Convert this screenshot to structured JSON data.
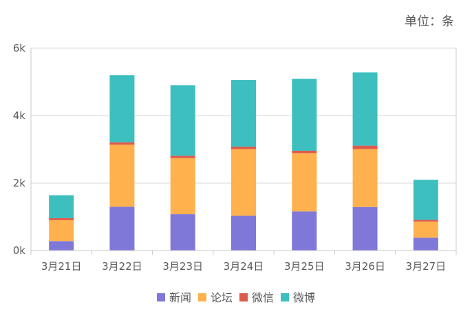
{
  "chart_data": {
    "type": "bar",
    "stacked": true,
    "unit_label": "单位：条",
    "categories": [
      "3月21日",
      "3月22日",
      "3月23日",
      "3月24日",
      "3月25日",
      "3月26日",
      "3月27日"
    ],
    "y_ticks": [
      {
        "value": 0,
        "label": "0k"
      },
      {
        "value": 2000,
        "label": "2k"
      },
      {
        "value": 4000,
        "label": "4k"
      },
      {
        "value": 6000,
        "label": "6k"
      }
    ],
    "ylim": [
      0,
      6000
    ],
    "grid": true,
    "legend_position": "bottom",
    "series": [
      {
        "name": "新闻",
        "color": "#7f78d8",
        "values": [
          280,
          1300,
          1080,
          1030,
          1160,
          1290,
          380
        ]
      },
      {
        "name": "论坛",
        "color": "#ffb14e",
        "values": [
          620,
          1840,
          1660,
          1980,
          1730,
          1720,
          480
        ]
      },
      {
        "name": "微信",
        "color": "#de5a4c",
        "values": [
          60,
          70,
          70,
          70,
          70,
          100,
          50
        ]
      },
      {
        "name": "微博",
        "color": "#3dbfbf",
        "values": [
          680,
          1990,
          2090,
          1980,
          2130,
          2170,
          1190
        ]
      }
    ]
  }
}
